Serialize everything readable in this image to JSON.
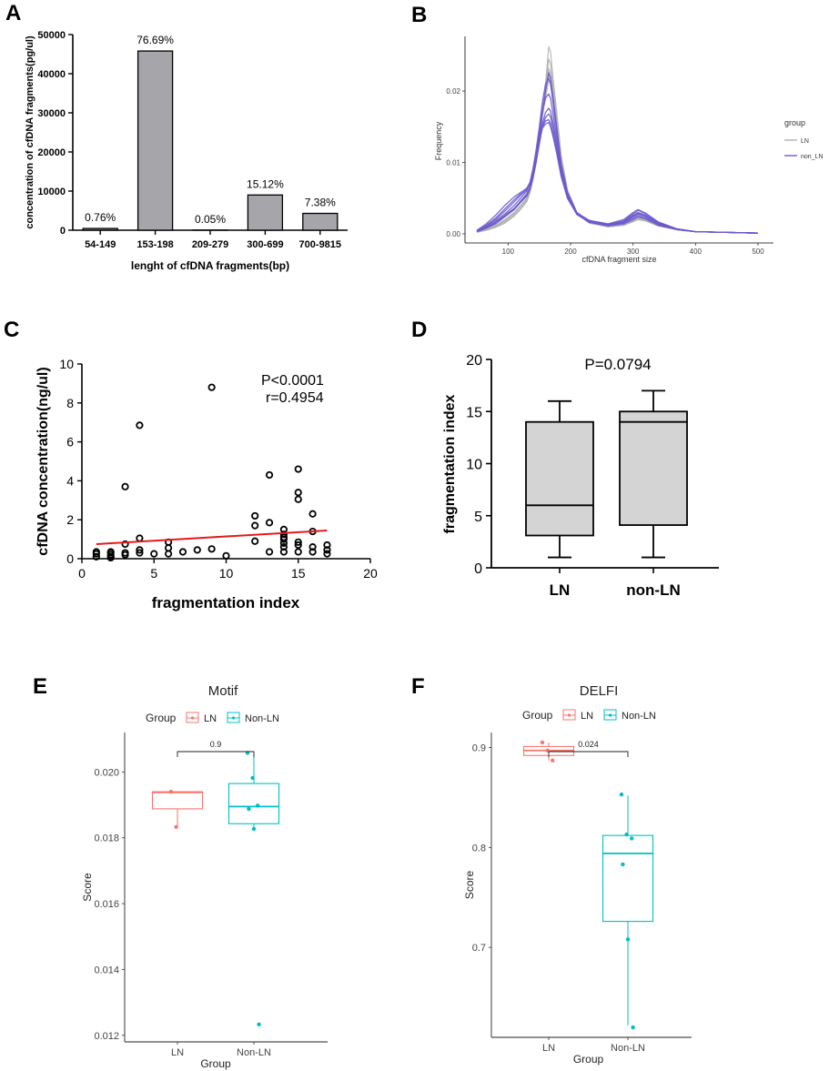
{
  "panels": {
    "A": "A",
    "B": "B",
    "C": "C",
    "D": "D",
    "E": "E",
    "F": "F"
  },
  "chart_data": [
    {
      "id": "A",
      "type": "bar",
      "title": "",
      "xlabel": "lenght of cfDNA fragments(bp)",
      "ylabel": "concentration of cfDNA fragments(pg/ul)",
      "categories": [
        "54-149",
        "153-198",
        "209-279",
        "300-699",
        "700-9815"
      ],
      "values": [
        450,
        45800,
        30,
        9000,
        4300
      ],
      "data_labels": [
        "0.76%",
        "76.69%",
        "0.05%",
        "15.12%",
        "7.38%"
      ],
      "ylim": [
        0,
        50000
      ],
      "yticks": [
        0,
        10000,
        20000,
        30000,
        40000,
        50000
      ],
      "bar_color": "#a6a6aa"
    },
    {
      "id": "B",
      "type": "line",
      "xlabel": "cfDNA fragment size",
      "ylabel": "Frequency",
      "xlim": [
        50,
        500
      ],
      "ylim": [
        0,
        0.026
      ],
      "xticks": [
        100,
        200,
        300,
        400,
        500
      ],
      "yticks": [
        0.0,
        0.01,
        0.02
      ],
      "ytick_labels": [
        "0.00",
        "0.01",
        "0.02"
      ],
      "legend_title": "group",
      "legend": [
        "LN",
        "non_LN"
      ],
      "colors": {
        "LN": "#b0b0b0",
        "non_LN": "#6a5acd"
      },
      "x": [
        50,
        65,
        80,
        95,
        110,
        120,
        130,
        135,
        140,
        145,
        150,
        155,
        160,
        165,
        168,
        172,
        178,
        185,
        195,
        210,
        230,
        260,
        285,
        300,
        308,
        320,
        340,
        370,
        400,
        450,
        500
      ],
      "series": [
        {
          "name": "LN",
          "values": [
            0.0003,
            0.0006,
            0.001,
            0.0018,
            0.0028,
            0.0038,
            0.0048,
            0.006,
            0.008,
            0.0108,
            0.014,
            0.0175,
            0.021,
            0.0262,
            0.0255,
            0.0218,
            0.017,
            0.011,
            0.0062,
            0.003,
            0.0016,
            0.001,
            0.0012,
            0.0018,
            0.0021,
            0.0019,
            0.0012,
            0.0006,
            0.0003,
            0.0002,
            0.0001
          ]
        },
        {
          "name": "LN",
          "values": [
            0.0003,
            0.0007,
            0.0012,
            0.002,
            0.003,
            0.004,
            0.005,
            0.0065,
            0.0085,
            0.0112,
            0.0145,
            0.018,
            0.0205,
            0.0245,
            0.0238,
            0.0205,
            0.016,
            0.0105,
            0.006,
            0.003,
            0.0016,
            0.001,
            0.0012,
            0.0019,
            0.0023,
            0.002,
            0.0012,
            0.0006,
            0.0003,
            0.0002,
            0.0001
          ]
        },
        {
          "name": "LN",
          "values": [
            0.0003,
            0.0005,
            0.0009,
            0.0016,
            0.0026,
            0.0035,
            0.0046,
            0.0058,
            0.0078,
            0.0105,
            0.0138,
            0.0172,
            0.02,
            0.0232,
            0.0225,
            0.0195,
            0.0152,
            0.01,
            0.0058,
            0.0029,
            0.0015,
            0.001,
            0.0013,
            0.002,
            0.0024,
            0.0021,
            0.0013,
            0.0006,
            0.0003,
            0.0002,
            0.0001
          ]
        },
        {
          "name": "LN",
          "values": [
            0.0003,
            0.0006,
            0.0011,
            0.0019,
            0.0029,
            0.0039,
            0.0049,
            0.0062,
            0.0082,
            0.011,
            0.0142,
            0.0176,
            0.0198,
            0.0222,
            0.0218,
            0.019,
            0.015,
            0.0098,
            0.0057,
            0.0029,
            0.0015,
            0.001,
            0.0012,
            0.0018,
            0.0022,
            0.0019,
            0.0012,
            0.0006,
            0.0003,
            0.0002,
            0.0001
          ]
        },
        {
          "name": "LN",
          "values": [
            0.0002,
            0.0005,
            0.0009,
            0.0015,
            0.0025,
            0.0034,
            0.0045,
            0.0057,
            0.0076,
            0.0102,
            0.0132,
            0.0165,
            0.019,
            0.0215,
            0.021,
            0.0185,
            0.0146,
            0.0096,
            0.0056,
            0.0028,
            0.0015,
            0.001,
            0.0012,
            0.0017,
            0.002,
            0.0018,
            0.0011,
            0.0006,
            0.0003,
            0.0002,
            0.0001
          ]
        },
        {
          "name": "non_LN",
          "values": [
            0.0004,
            0.0012,
            0.0022,
            0.0035,
            0.0048,
            0.0056,
            0.0062,
            0.007,
            0.0085,
            0.0108,
            0.0135,
            0.0168,
            0.02,
            0.0226,
            0.0218,
            0.019,
            0.0148,
            0.0098,
            0.0058,
            0.003,
            0.0018,
            0.0013,
            0.0018,
            0.0028,
            0.0033,
            0.0028,
            0.0016,
            0.0007,
            0.0003,
            0.0002,
            0.0001
          ]
        },
        {
          "name": "non_LN",
          "values": [
            0.0004,
            0.001,
            0.0018,
            0.0028,
            0.004,
            0.005,
            0.006,
            0.0072,
            0.0092,
            0.0118,
            0.015,
            0.0185,
            0.021,
            0.0218,
            0.021,
            0.0184,
            0.0143,
            0.0095,
            0.0057,
            0.003,
            0.0018,
            0.0013,
            0.0017,
            0.0025,
            0.0029,
            0.0025,
            0.0015,
            0.0007,
            0.0003,
            0.0002,
            0.0001
          ]
        },
        {
          "name": "non_LN",
          "values": [
            0.0005,
            0.0014,
            0.0026,
            0.004,
            0.0052,
            0.0058,
            0.0064,
            0.0072,
            0.0088,
            0.011,
            0.0132,
            0.015,
            0.0158,
            0.016,
            0.0155,
            0.014,
            0.0115,
            0.0082,
            0.0052,
            0.0029,
            0.0019,
            0.0014,
            0.002,
            0.003,
            0.0034,
            0.0029,
            0.0017,
            0.0007,
            0.0003,
            0.0002,
            0.0001
          ]
        },
        {
          "name": "non_LN",
          "values": [
            0.0004,
            0.0011,
            0.002,
            0.0032,
            0.0045,
            0.0054,
            0.0062,
            0.007,
            0.0086,
            0.0106,
            0.013,
            0.0148,
            0.0154,
            0.0156,
            0.015,
            0.0136,
            0.0112,
            0.008,
            0.005,
            0.0028,
            0.0018,
            0.0013,
            0.0018,
            0.0026,
            0.003,
            0.0026,
            0.0015,
            0.0007,
            0.0003,
            0.0002,
            0.0001
          ]
        },
        {
          "name": "non_LN",
          "values": [
            0.0004,
            0.0009,
            0.0016,
            0.0026,
            0.0036,
            0.0046,
            0.0056,
            0.0066,
            0.0084,
            0.0108,
            0.014,
            0.0172,
            0.019,
            0.0196,
            0.019,
            0.0168,
            0.0133,
            0.009,
            0.0054,
            0.0029,
            0.0017,
            0.0012,
            0.0016,
            0.0024,
            0.0028,
            0.0024,
            0.0014,
            0.0006,
            0.0003,
            0.0002,
            0.0001
          ]
        },
        {
          "name": "non_LN",
          "values": [
            0.0003,
            0.0008,
            0.0015,
            0.0025,
            0.0035,
            0.0045,
            0.0054,
            0.0064,
            0.008,
            0.0102,
            0.0128,
            0.0155,
            0.017,
            0.0176,
            0.0172,
            0.0155,
            0.0125,
            0.0086,
            0.0052,
            0.0028,
            0.0017,
            0.0012,
            0.0015,
            0.0022,
            0.0026,
            0.0022,
            0.0013,
            0.0006,
            0.0003,
            0.0002,
            0.0001
          ]
        },
        {
          "name": "non_LN",
          "values": [
            0.0003,
            0.0008,
            0.0014,
            0.0024,
            0.0034,
            0.0044,
            0.0053,
            0.0063,
            0.0079,
            0.01,
            0.0126,
            0.015,
            0.0163,
            0.0168,
            0.0164,
            0.0148,
            0.012,
            0.0083,
            0.005,
            0.0027,
            0.0016,
            0.0011,
            0.0014,
            0.002,
            0.0024,
            0.0021,
            0.0012,
            0.0006,
            0.0003,
            0.0002,
            0.0001
          ]
        }
      ]
    },
    {
      "id": "C",
      "type": "scatter",
      "xlabel": "fragmentation index",
      "ylabel": "cfDNA concentration(ng/ul)",
      "xlim": [
        0,
        20
      ],
      "ylim": [
        0,
        10
      ],
      "xticks": [
        0,
        5,
        10,
        15,
        20
      ],
      "yticks": [
        0,
        2,
        4,
        6,
        8,
        10
      ],
      "annotations": [
        "P<0.0001",
        "r=0.4954"
      ],
      "fit_line": {
        "x": [
          1,
          17
        ],
        "y": [
          0.75,
          1.45
        ],
        "color": "#e41a1c"
      },
      "points": [
        [
          1,
          0.1
        ],
        [
          1,
          0.25
        ],
        [
          1,
          0.35
        ],
        [
          2,
          0.05
        ],
        [
          2,
          0.1
        ],
        [
          2,
          0.2
        ],
        [
          2,
          0.3
        ],
        [
          2,
          0.35
        ],
        [
          3,
          0.2
        ],
        [
          3,
          0.3
        ],
        [
          3,
          0.75
        ],
        [
          3,
          3.7
        ],
        [
          4,
          0.3
        ],
        [
          4,
          0.45
        ],
        [
          4,
          1.05
        ],
        [
          4,
          6.85
        ],
        [
          5,
          0.25
        ],
        [
          6,
          0.25
        ],
        [
          6,
          0.55
        ],
        [
          6,
          0.85
        ],
        [
          7,
          0.35
        ],
        [
          8,
          0.45
        ],
        [
          9,
          0.5
        ],
        [
          9,
          8.8
        ],
        [
          10,
          0.15
        ],
        [
          12,
          0.9
        ],
        [
          12,
          1.7
        ],
        [
          12,
          2.2
        ],
        [
          13,
          0.35
        ],
        [
          13,
          1.85
        ],
        [
          13,
          4.3
        ],
        [
          14,
          0.35
        ],
        [
          14,
          0.6
        ],
        [
          14,
          0.8
        ],
        [
          14,
          1.0
        ],
        [
          14,
          1.1
        ],
        [
          14,
          1.25
        ],
        [
          14,
          1.5
        ],
        [
          15,
          0.35
        ],
        [
          15,
          0.7
        ],
        [
          15,
          0.85
        ],
        [
          15,
          3.05
        ],
        [
          15,
          3.4
        ],
        [
          15,
          4.6
        ],
        [
          16,
          0.35
        ],
        [
          16,
          0.6
        ],
        [
          16,
          1.4
        ],
        [
          16,
          2.3
        ],
        [
          17,
          0.25
        ],
        [
          17,
          0.45
        ],
        [
          17,
          0.7
        ]
      ]
    },
    {
      "id": "D",
      "type": "box",
      "ylabel": "fragmentation index",
      "categories": [
        "LN",
        "non-LN"
      ],
      "annotation": "P=0.0794",
      "ylim": [
        0,
        20
      ],
      "yticks": [
        0,
        5,
        10,
        15,
        20
      ],
      "boxes": [
        {
          "name": "LN",
          "min": 1,
          "q1": 3.1,
          "median": 6,
          "q3": 14,
          "max": 16
        },
        {
          "name": "non-LN",
          "min": 1,
          "q1": 4.1,
          "median": 14,
          "q3": 15,
          "max": 17
        }
      ],
      "fill": "#d4d4d4"
    },
    {
      "id": "E",
      "type": "box",
      "title": "Motif",
      "xlabel": "Group",
      "ylabel": "Score",
      "legend_title": "Group",
      "legend": [
        "LN",
        "Non-LN"
      ],
      "colors": {
        "LN": "#f8766d",
        "Non-LN": "#00bfc4"
      },
      "categories": [
        "LN",
        "Non-LN"
      ],
      "ylim": [
        0.0118,
        0.0212
      ],
      "yticks": [
        0.012,
        0.014,
        0.016,
        0.018,
        0.02
      ],
      "ytick_labels": [
        "0.012",
        "0.014",
        "0.016",
        "0.018",
        "0.020"
      ],
      "bracket_label": "0.9",
      "boxes": [
        {
          "name": "LN",
          "min": 0.01833,
          "q1": 0.01888,
          "median": 0.01938,
          "q3": 0.0194,
          "max": 0.0194
        },
        {
          "name": "Non-LN",
          "min": 0.01827,
          "q1": 0.01843,
          "median": 0.01895,
          "q3": 0.01965,
          "max": 0.02058
        }
      ],
      "points": {
        "LN": [
          0.0194,
          0.01833
        ],
        "Non-LN": [
          0.02058,
          0.01982,
          0.01898,
          0.01888,
          0.01827,
          0.01233
        ]
      }
    },
    {
      "id": "F",
      "type": "box",
      "title": "DELFI",
      "xlabel": "Group",
      "ylabel": "Score",
      "legend_title": "Group",
      "legend": [
        "LN",
        "Non-LN"
      ],
      "colors": {
        "LN": "#f8766d",
        "Non-LN": "#00bfc4"
      },
      "categories": [
        "LN",
        "Non-LN"
      ],
      "ylim": [
        0.61,
        0.915
      ],
      "yticks": [
        0.7,
        0.8,
        0.9
      ],
      "ytick_labels": [
        "0.7",
        "0.8",
        "0.9"
      ],
      "bracket_label": "0.024",
      "boxes": [
        {
          "name": "LN",
          "min": 0.887,
          "q1": 0.892,
          "median": 0.897,
          "q3": 0.901,
          "max": 0.905
        },
        {
          "name": "Non-LN",
          "min": 0.622,
          "q1": 0.726,
          "median": 0.794,
          "q3": 0.812,
          "max": 0.852
        }
      ],
      "points": {
        "LN": [
          0.905,
          0.897,
          0.887
        ],
        "Non-LN": [
          0.853,
          0.813,
          0.809,
          0.783,
          0.708,
          0.62
        ]
      }
    }
  ]
}
